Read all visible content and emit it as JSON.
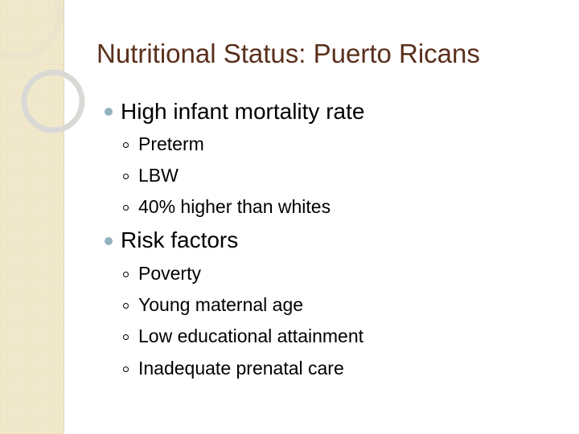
{
  "slide": {
    "title": "Nutritional Status: Puerto Ricans",
    "bullets": [
      {
        "text": "High infant mortality rate",
        "sub": [
          "Preterm",
          "LBW",
          "40% higher than whites"
        ]
      },
      {
        "text": "Risk factors",
        "sub": [
          "Poverty",
          "Young maternal age",
          "Low educational attainment",
          "Inadequate prenatal care"
        ]
      }
    ]
  },
  "colors": {
    "title": "#5a2f1c",
    "bullet_dot": "#93b2c0",
    "side_strip": "#f4ecd2"
  }
}
